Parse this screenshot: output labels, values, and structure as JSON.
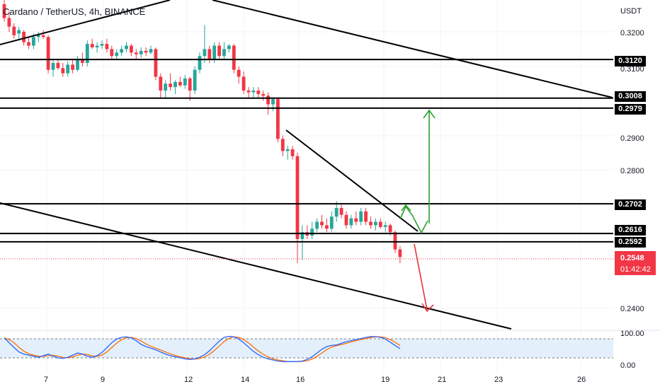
{
  "title": "Cardano / TetherUS, 4h, BINANCE",
  "currency": "USDT",
  "price_axis_ticks": [
    "0.3200",
    "0.3100",
    "0.2900",
    "0.2800",
    "0.2400"
  ],
  "level_tags": [
    "0.3120",
    "0.3008",
    "0.2979",
    "0.2702",
    "0.2616",
    "0.2592"
  ],
  "current_price": "0.2548",
  "countdown": "01:42:42",
  "time_axis_ticks": [
    "7",
    "9",
    "12",
    "14",
    "16",
    "19",
    "21",
    "23",
    "26"
  ],
  "indicator_ticks": [
    "100.00",
    "0.00"
  ],
  "colors": {
    "up": "#26a69a",
    "down": "#f23645",
    "k_line": "#2962ff",
    "d_line": "#ff6d00",
    "target_up": "#2ca02c",
    "target_down": "#e8323c",
    "band": "#e3f0fb"
  },
  "chart_data": {
    "type": "candlestick",
    "symbol": "ADA/USDT",
    "timeframe": "4h",
    "horizontal_levels": [
      0.312,
      0.3008,
      0.2979,
      0.2702,
      0.2616,
      0.2592
    ],
    "current_price": 0.2548,
    "ohlc": [
      [
        0.328,
        0.33,
        0.323,
        0.324
      ],
      [
        0.324,
        0.326,
        0.32,
        0.3215
      ],
      [
        0.3215,
        0.3225,
        0.318,
        0.319
      ],
      [
        0.3195,
        0.3215,
        0.3175,
        0.3205
      ],
      [
        0.32,
        0.3205,
        0.316,
        0.317
      ],
      [
        0.317,
        0.3185,
        0.315,
        0.316
      ],
      [
        0.316,
        0.3195,
        0.315,
        0.3185
      ],
      [
        0.3185,
        0.32,
        0.317,
        0.319
      ],
      [
        0.319,
        0.3205,
        0.318,
        0.3185
      ],
      [
        0.3185,
        0.319,
        0.308,
        0.309
      ],
      [
        0.309,
        0.312,
        0.307,
        0.311
      ],
      [
        0.311,
        0.312,
        0.309,
        0.3095
      ],
      [
        0.3095,
        0.311,
        0.307,
        0.308
      ],
      [
        0.308,
        0.3115,
        0.307,
        0.3105
      ],
      [
        0.3105,
        0.312,
        0.308,
        0.309
      ],
      [
        0.309,
        0.313,
        0.3085,
        0.312
      ],
      [
        0.312,
        0.314,
        0.31,
        0.311
      ],
      [
        0.311,
        0.3175,
        0.31,
        0.3165
      ],
      [
        0.3165,
        0.318,
        0.315,
        0.3155
      ],
      [
        0.3155,
        0.317,
        0.314,
        0.316
      ],
      [
        0.316,
        0.3175,
        0.315,
        0.3165
      ],
      [
        0.3165,
        0.318,
        0.314,
        0.315
      ],
      [
        0.315,
        0.316,
        0.312,
        0.313
      ],
      [
        0.313,
        0.315,
        0.312,
        0.314
      ],
      [
        0.314,
        0.316,
        0.313,
        0.315
      ],
      [
        0.315,
        0.317,
        0.314,
        0.316
      ],
      [
        0.316,
        0.3165,
        0.313,
        0.314
      ],
      [
        0.314,
        0.315,
        0.312,
        0.3135
      ],
      [
        0.3135,
        0.3155,
        0.3125,
        0.3145
      ],
      [
        0.3145,
        0.3155,
        0.313,
        0.314
      ],
      [
        0.314,
        0.316,
        0.3135,
        0.315
      ],
      [
        0.315,
        0.3155,
        0.306,
        0.307
      ],
      [
        0.307,
        0.308,
        0.301,
        0.303
      ],
      [
        0.303,
        0.306,
        0.301,
        0.305
      ],
      [
        0.305,
        0.308,
        0.303,
        0.304
      ],
      [
        0.304,
        0.306,
        0.302,
        0.3055
      ],
      [
        0.3055,
        0.307,
        0.304,
        0.3045
      ],
      [
        0.3045,
        0.3075,
        0.3035,
        0.3065
      ],
      [
        0.3065,
        0.307,
        0.3,
        0.303
      ],
      [
        0.303,
        0.31,
        0.302,
        0.309
      ],
      [
        0.309,
        0.314,
        0.308,
        0.313
      ],
      [
        0.313,
        0.322,
        0.311,
        0.315
      ],
      [
        0.315,
        0.316,
        0.311,
        0.312
      ],
      [
        0.312,
        0.317,
        0.311,
        0.316
      ],
      [
        0.316,
        0.317,
        0.312,
        0.313
      ],
      [
        0.313,
        0.317,
        0.312,
        0.315
      ],
      [
        0.315,
        0.3165,
        0.314,
        0.316
      ],
      [
        0.316,
        0.3165,
        0.308,
        0.309
      ],
      [
        0.309,
        0.31,
        0.305,
        0.307
      ],
      [
        0.307,
        0.3085,
        0.302,
        0.303
      ],
      [
        0.303,
        0.304,
        0.301,
        0.3025
      ],
      [
        0.3025,
        0.304,
        0.301,
        0.303
      ],
      [
        0.303,
        0.304,
        0.301,
        0.302
      ],
      [
        0.302,
        0.303,
        0.3,
        0.3015
      ],
      [
        0.3015,
        0.3025,
        0.296,
        0.299
      ],
      [
        0.299,
        0.301,
        0.297,
        0.3005
      ],
      [
        0.3005,
        0.301,
        0.288,
        0.289
      ],
      [
        0.289,
        0.29,
        0.284,
        0.2855
      ],
      [
        0.2855,
        0.287,
        0.283,
        0.286
      ],
      [
        0.286,
        0.287,
        0.283,
        0.284
      ],
      [
        0.284,
        0.285,
        0.253,
        0.26
      ],
      [
        0.26,
        0.264,
        0.254,
        0.262
      ],
      [
        0.262,
        0.264,
        0.26,
        0.261
      ],
      [
        0.261,
        0.265,
        0.26,
        0.263
      ],
      [
        0.263,
        0.266,
        0.262,
        0.265
      ],
      [
        0.265,
        0.267,
        0.263,
        0.264
      ],
      [
        0.264,
        0.266,
        0.262,
        0.263
      ],
      [
        0.263,
        0.268,
        0.262,
        0.2665
      ],
      [
        0.2665,
        0.271,
        0.265,
        0.269
      ],
      [
        0.269,
        0.27,
        0.266,
        0.267
      ],
      [
        0.267,
        0.268,
        0.263,
        0.264
      ],
      [
        0.264,
        0.267,
        0.263,
        0.266
      ],
      [
        0.266,
        0.268,
        0.264,
        0.265
      ],
      [
        0.265,
        0.269,
        0.264,
        0.268
      ],
      [
        0.268,
        0.269,
        0.264,
        0.265
      ],
      [
        0.265,
        0.2665,
        0.263,
        0.264
      ],
      [
        0.264,
        0.266,
        0.2625,
        0.265
      ],
      [
        0.265,
        0.266,
        0.263,
        0.2635
      ],
      [
        0.2635,
        0.265,
        0.262,
        0.264
      ],
      [
        0.264,
        0.2645,
        0.261,
        0.262
      ],
      [
        0.262,
        0.2625,
        0.256,
        0.257
      ],
      [
        0.257,
        0.258,
        0.253,
        0.2548
      ]
    ]
  }
}
